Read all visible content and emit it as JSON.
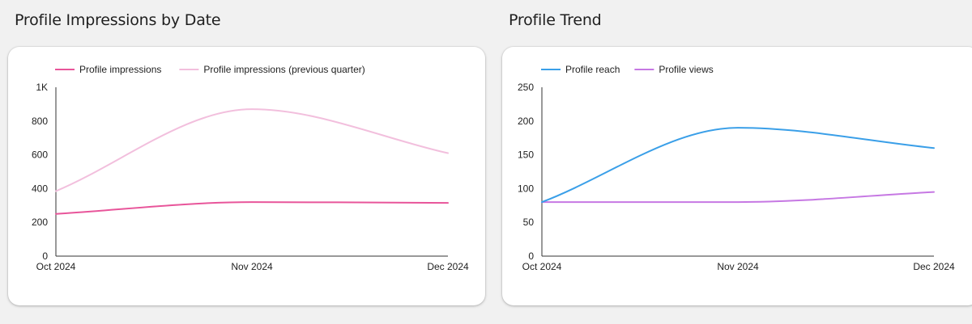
{
  "left_panel": {
    "title": "Profile Impressions by Date"
  },
  "right_panel": {
    "title": "Profile Trend"
  },
  "colors": {
    "background": "#f1f1f1",
    "card": "#ffffff",
    "impressions": "#e8559a",
    "impressions_prev": "#f2bfdd",
    "reach": "#3a9fe8",
    "views": "#c678e3"
  },
  "chart_data": [
    {
      "type": "line",
      "title": "Profile Impressions by Date",
      "xlabel": "",
      "ylabel": "",
      "x": [
        "Oct 2024",
        "Nov 2024",
        "Dec 2024"
      ],
      "ylim": [
        0,
        1000
      ],
      "yticks": [
        0,
        200,
        400,
        600,
        800,
        1000
      ],
      "ytick_labels": [
        "0",
        "200",
        "400",
        "600",
        "800",
        "1K"
      ],
      "grid": false,
      "legend_position": "top-left",
      "series": [
        {
          "name": "Profile impressions",
          "values": [
            250,
            320,
            315
          ],
          "color": "#e8559a",
          "width": 2
        },
        {
          "name": "Profile impressions (previous quarter)",
          "values": [
            385,
            870,
            610
          ],
          "color": "#f2bfdd",
          "width": 2
        }
      ]
    },
    {
      "type": "line",
      "title": "Profile Trend",
      "xlabel": "",
      "ylabel": "",
      "x": [
        "Oct 2024",
        "Nov 2024",
        "Dec 2024"
      ],
      "ylim": [
        0,
        250
      ],
      "yticks": [
        0,
        50,
        100,
        150,
        200,
        250
      ],
      "ytick_labels": [
        "0",
        "50",
        "100",
        "150",
        "200",
        "250"
      ],
      "grid": false,
      "legend_position": "top-left",
      "series": [
        {
          "name": "Profile reach",
          "values": [
            80,
            190,
            160
          ],
          "color": "#3a9fe8",
          "width": 2
        },
        {
          "name": "Profile views",
          "values": [
            80,
            80,
            95
          ],
          "color": "#c678e3",
          "width": 2
        }
      ]
    }
  ]
}
